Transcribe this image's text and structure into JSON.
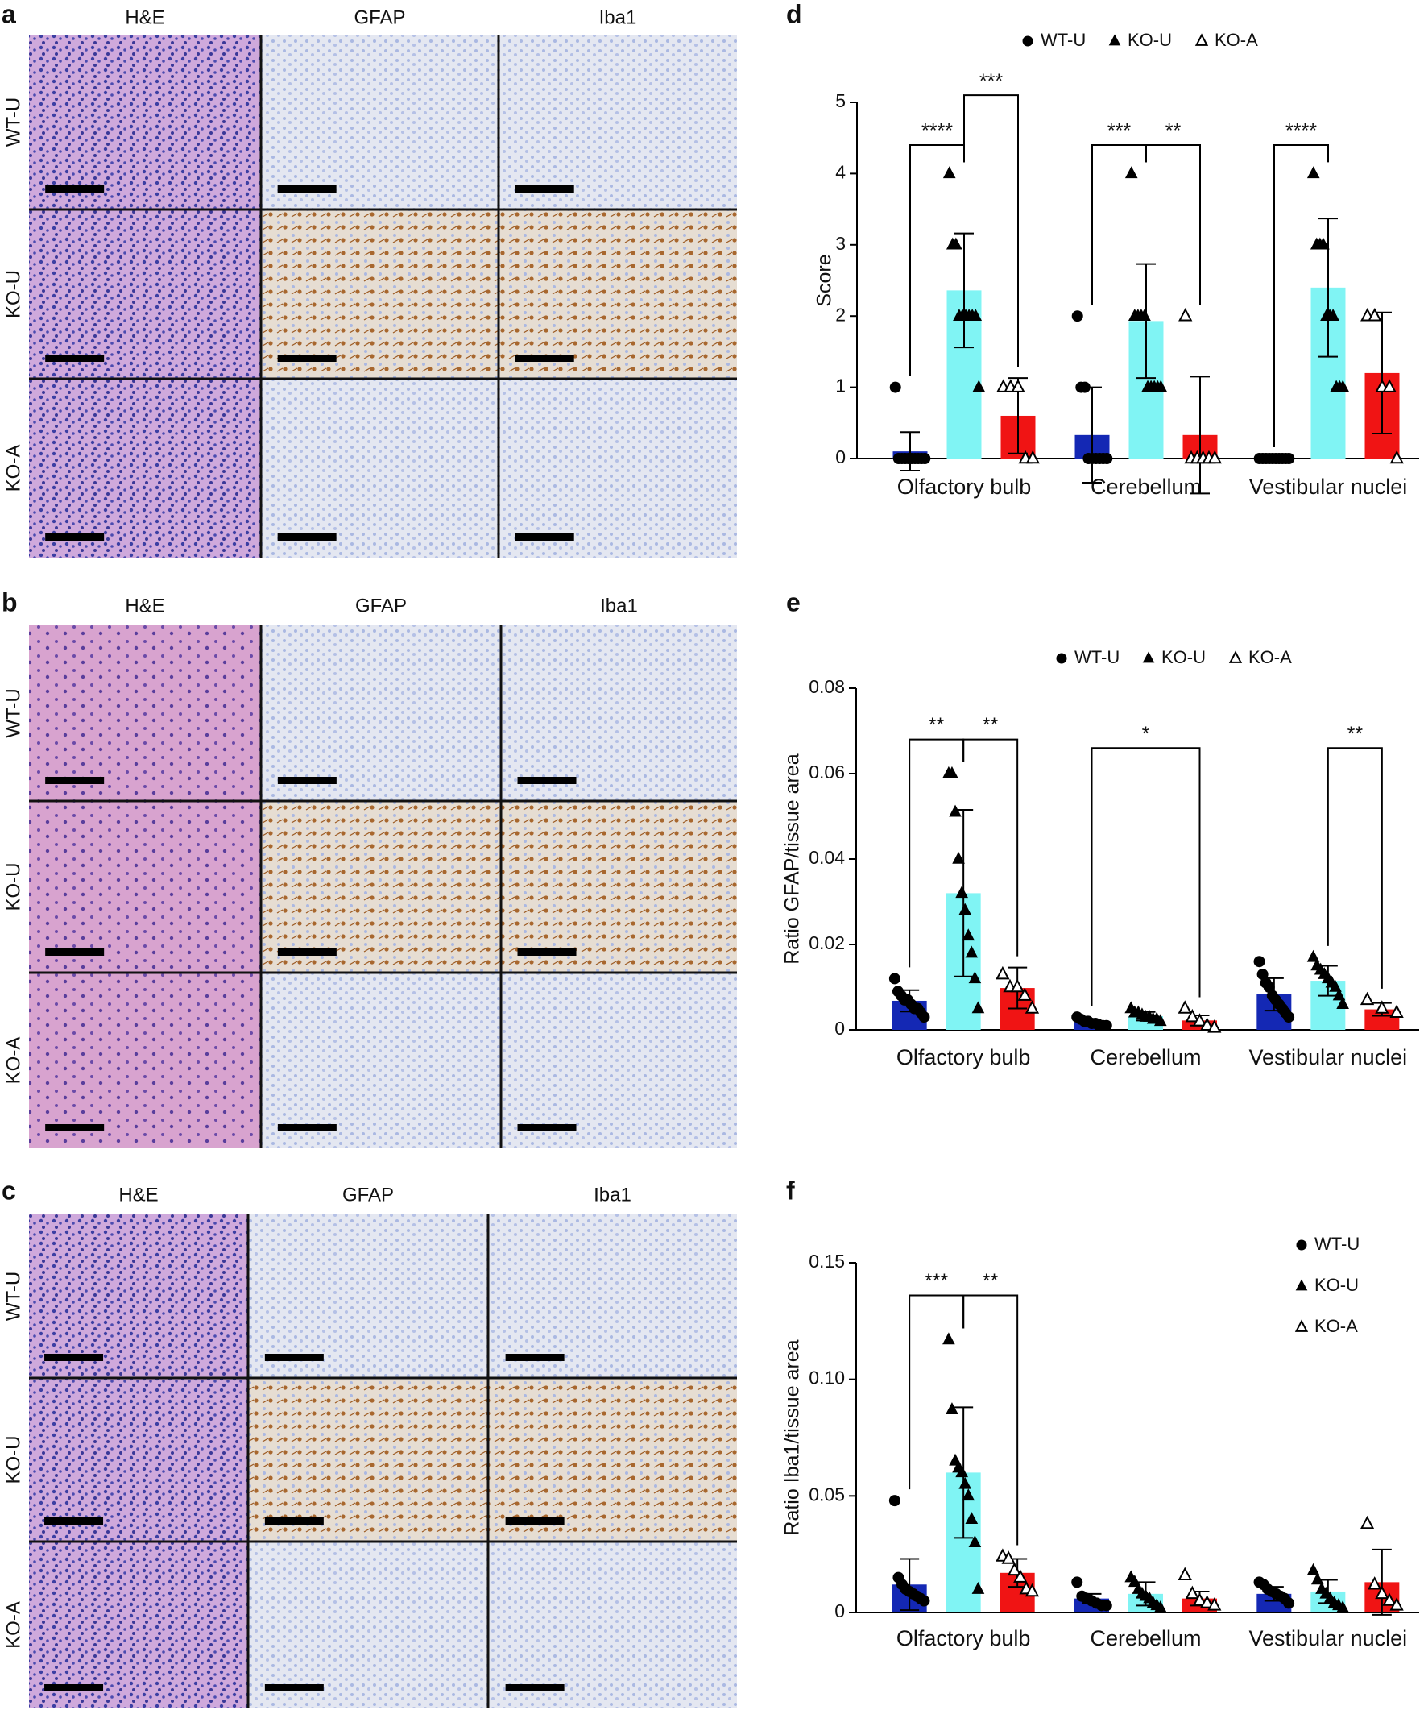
{
  "panels": [
    {
      "letter": "a",
      "columns": [
        "H&E",
        "GFAP",
        "Iba1"
      ],
      "rows": [
        "WT-U",
        "KO-U",
        "KO-A"
      ]
    },
    {
      "letter": "b",
      "columns": [
        "H&E",
        "GFAP",
        "Iba1"
      ],
      "rows": [
        "WT-U",
        "KO-U",
        "KO-A"
      ]
    },
    {
      "letter": "c",
      "columns": [
        "H&E",
        "GFAP",
        "Iba1"
      ],
      "rows": [
        "WT-U",
        "KO-U",
        "KO-A"
      ]
    }
  ],
  "chart_data": [
    {
      "type": "bar",
      "title": "d",
      "y_label": "Score",
      "categories": [
        "Olfactory bulb",
        "Cerebellum",
        "Vestibular nuclei"
      ],
      "ylim": [
        0,
        5
      ],
      "yticks": [
        0,
        1,
        2,
        3,
        4,
        5
      ],
      "legend": "top",
      "series": [
        {
          "name": "WT-U",
          "color": "#1428b4",
          "marker": "circle",
          "values": [
            0.1,
            0.33,
            0
          ],
          "errors": [
            0.27,
            0.67,
            0
          ],
          "points": [
            [
              1,
              0,
              0,
              0,
              0,
              0,
              0,
              0,
              0,
              0
            ],
            [
              2,
              1,
              1,
              0,
              0,
              0,
              0,
              0,
              0
            ],
            [
              0,
              0,
              0,
              0,
              0,
              0,
              0,
              0,
              0,
              0
            ]
          ]
        },
        {
          "name": "KO-U",
          "color": "#80f4f4",
          "marker": "triangle",
          "values": [
            2.36,
            1.93,
            2.4
          ],
          "errors": [
            0.8,
            0.8,
            0.97
          ],
          "points": [
            [
              4,
              3,
              3,
              2,
              2,
              2,
              2,
              2,
              2,
              1
            ],
            [
              4,
              2,
              2,
              2,
              2,
              1,
              1,
              1,
              1,
              1
            ],
            [
              4,
              3,
              3,
              3,
              2,
              2,
              2,
              1,
              1,
              1
            ]
          ]
        },
        {
          "name": "KO-A",
          "color": "#f01414",
          "marker": "triangle-open",
          "values": [
            0.6,
            0.33,
            1.2
          ],
          "errors": [
            0.53,
            0.82,
            0.85
          ],
          "points": [
            [
              1,
              1,
              1,
              0,
              0
            ],
            [
              2,
              0,
              0,
              0,
              0,
              0
            ],
            [
              2,
              2,
              1,
              1,
              0
            ]
          ]
        }
      ],
      "brackets": [
        {
          "group": 0,
          "from": 0,
          "to": 1,
          "y": 4.4,
          "label": "****"
        },
        {
          "group": 0,
          "from": 1,
          "to": 2,
          "y": 5.1,
          "label": "***"
        },
        {
          "group": 1,
          "from": 0,
          "to": 1,
          "y": 4.4,
          "label": "***"
        },
        {
          "group": 1,
          "from": 1,
          "to": 2,
          "y": 4.4,
          "label": "**"
        },
        {
          "group": 2,
          "from": 0,
          "to": 1,
          "y": 4.4,
          "label": "****"
        }
      ]
    },
    {
      "type": "bar",
      "title": "e",
      "y_label": "Ratio GFAP/tissue area",
      "categories": [
        "Olfactory bulb",
        "Cerebellum",
        "Vestibular nuclei"
      ],
      "ylim": [
        0,
        0.08
      ],
      "yticks": [
        0,
        0.02,
        0.04,
        0.06,
        0.08
      ],
      "legend": "top",
      "series": [
        {
          "name": "WT-U",
          "color": "#1428b4",
          "marker": "circle",
          "values": [
            0.0068,
            0.0018,
            0.0083
          ],
          "errors": [
            0.0025,
            0.0006,
            0.0038
          ],
          "points": [
            [
              0.012,
              0.009,
              0.008,
              0.007,
              0.007,
              0.006,
              0.005,
              0.005,
              0.004,
              0.003
            ],
            [
              0.003,
              0.0025,
              0.002,
              0.002,
              0.0015,
              0.0015,
              0.001,
              0.001,
              0.001
            ],
            [
              0.016,
              0.013,
              0.011,
              0.01,
              0.008,
              0.007,
              0.006,
              0.005,
              0.004,
              0.003
            ]
          ]
        },
        {
          "name": "KO-U",
          "color": "#80f4f4",
          "marker": "triangle",
          "values": [
            0.032,
            0.0032,
            0.0115
          ],
          "errors": [
            0.0195,
            0.001,
            0.0035
          ],
          "points": [
            [
              0.06,
              0.06,
              0.051,
              0.04,
              0.032,
              0.028,
              0.022,
              0.018,
              0.012,
              0.005
            ],
            [
              0.005,
              0.004,
              0.004,
              0.0035,
              0.003,
              0.003,
              0.0025,
              0.0025,
              0.002
            ],
            [
              0.017,
              0.015,
              0.014,
              0.013,
              0.012,
              0.011,
              0.01,
              0.008,
              0.006
            ]
          ]
        },
        {
          "name": "KO-A",
          "color": "#f01414",
          "marker": "triangle-open",
          "values": [
            0.0098,
            0.0022,
            0.0048
          ],
          "errors": [
            0.0048,
            0.0012,
            0.0015
          ],
          "points": [
            [
              0.013,
              0.01,
              0.01,
              0.008,
              0.005
            ],
            [
              0.005,
              0.003,
              0.002,
              0.001,
              0.0005
            ],
            [
              0.007,
              0.005,
              0.004
            ]
          ]
        }
      ],
      "brackets": [
        {
          "group": 0,
          "from": 0,
          "to": 1,
          "y": 0.068,
          "label": "**"
        },
        {
          "group": 0,
          "from": 1,
          "to": 2,
          "y": 0.068,
          "label": "**"
        },
        {
          "group": 1,
          "from": 0,
          "to": 2,
          "y": 0.066,
          "label": "*"
        },
        {
          "group": 2,
          "from": 1,
          "to": 2,
          "y": 0.066,
          "label": "**"
        }
      ]
    },
    {
      "type": "bar",
      "title": "f",
      "y_label": "Ratio Iba1/tissue area",
      "categories": [
        "Olfactory bulb",
        "Cerebellum",
        "Vestibular nuclei"
      ],
      "ylim": [
        0,
        0.15
      ],
      "yticks": [
        0,
        0.05,
        {
          "value": 0.1,
          "label": "0.10"
        },
        0.15
      ],
      "legend": "top-right",
      "series": [
        {
          "name": "WT-U",
          "color": "#1428b4",
          "marker": "circle",
          "values": [
            0.012,
            0.006,
            0.008
          ],
          "errors": [
            0.011,
            0.002,
            0.003
          ],
          "points": [
            [
              0.048,
              0.015,
              0.012,
              0.01,
              0.009,
              0.008,
              0.007,
              0.006,
              0.005
            ],
            [
              0.013,
              0.007,
              0.006,
              0.005,
              0.004,
              0.003,
              0.003
            ],
            [
              0.013,
              0.012,
              0.01,
              0.009,
              0.008,
              0.007,
              0.006,
              0.004
            ]
          ]
        },
        {
          "name": "KO-U",
          "color": "#80f4f4",
          "marker": "triangle",
          "values": [
            0.06,
            0.008,
            0.009
          ],
          "errors": [
            0.028,
            0.005,
            0.005
          ],
          "points": [
            [
              0.117,
              0.087,
              0.065,
              0.062,
              0.06,
              0.055,
              0.05,
              0.04,
              0.03,
              0.01
            ],
            [
              0.015,
              0.013,
              0.01,
              0.008,
              0.007,
              0.006,
              0.004,
              0.003,
              0.002
            ],
            [
              0.018,
              0.014,
              0.01,
              0.008,
              0.006,
              0.004,
              0.003,
              0.002
            ]
          ]
        },
        {
          "name": "KO-A",
          "color": "#f01414",
          "marker": "triangle-open",
          "values": [
            0.017,
            0.006,
            0.013
          ],
          "errors": [
            0.006,
            0.003,
            0.014
          ],
          "points": [
            [
              0.024,
              0.023,
              0.018,
              0.015,
              0.01,
              0.009
            ],
            [
              0.016,
              0.008,
              0.005,
              0.004,
              0.003
            ],
            [
              0.038,
              0.012,
              0.008,
              0.005,
              0.003
            ]
          ]
        }
      ],
      "brackets": [
        {
          "group": 0,
          "from": 0,
          "to": 1,
          "y": 0.136,
          "label": "***"
        },
        {
          "group": 0,
          "from": 1,
          "to": 2,
          "y": 0.136,
          "label": "**"
        }
      ]
    }
  ]
}
